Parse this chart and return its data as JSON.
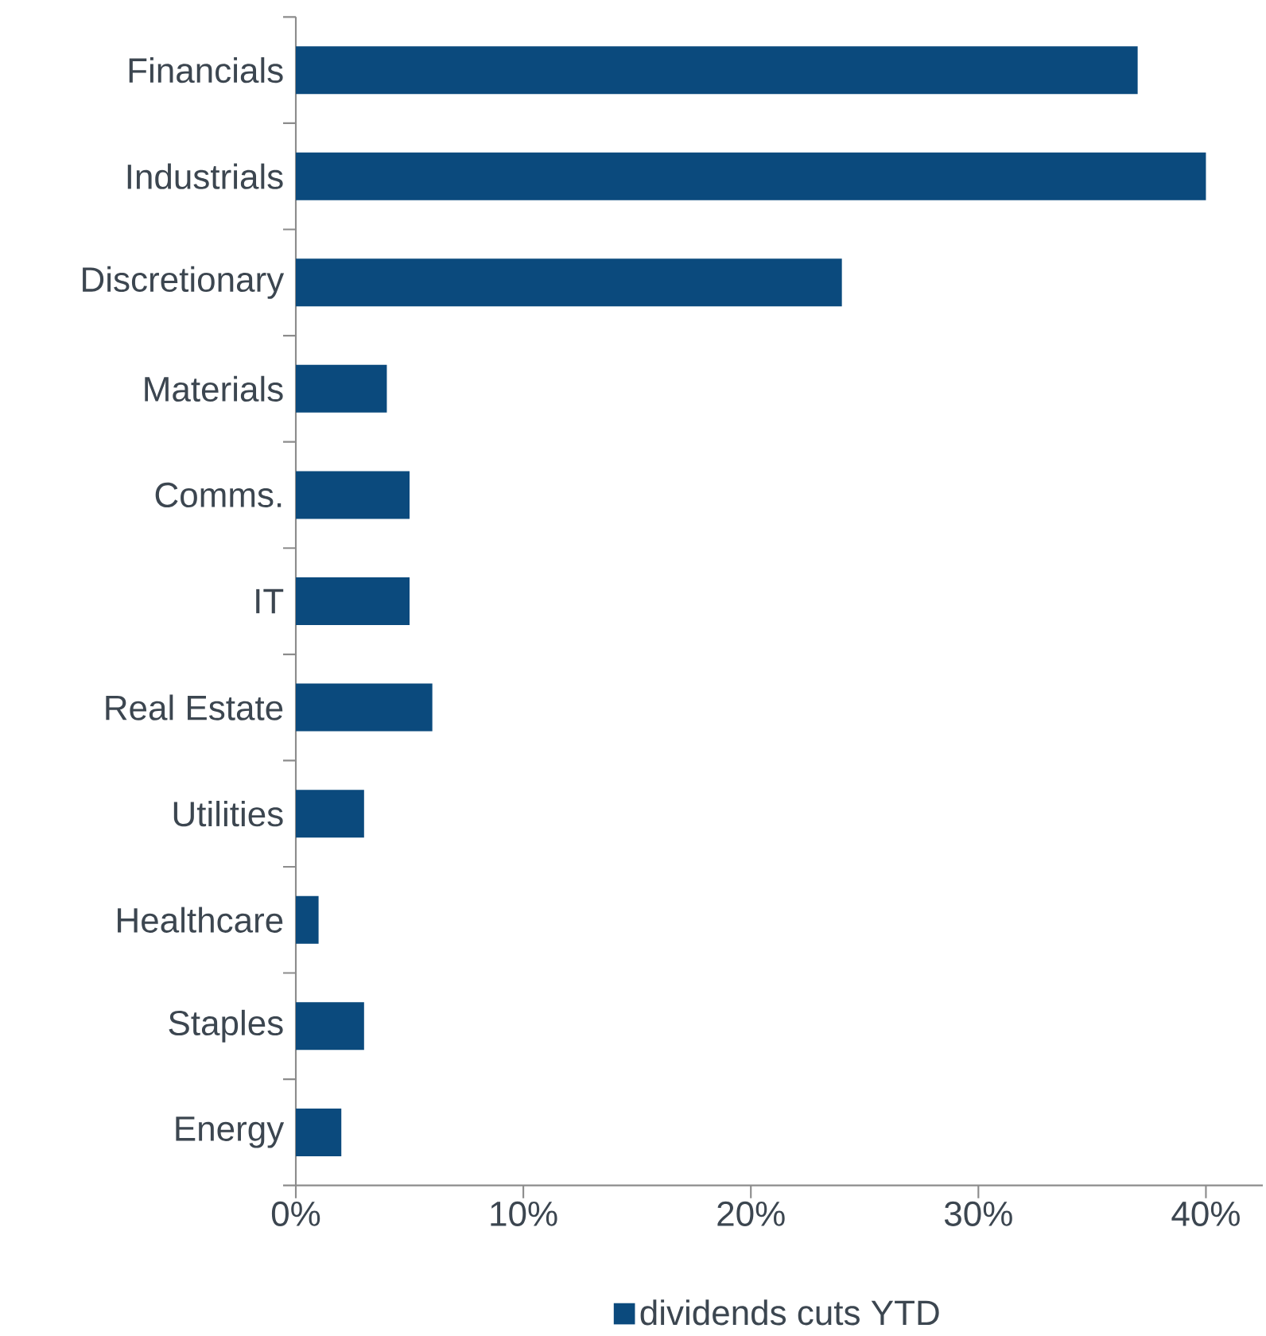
{
  "chart_data": {
    "type": "bar",
    "orientation": "horizontal",
    "categories": [
      "Financials",
      "Industrials",
      "Discretionary",
      "Materials",
      "Comms.",
      "IT",
      "Real Estate",
      "Utilities",
      "Healthcare",
      "Staples",
      "Energy"
    ],
    "series": [
      {
        "name": "dividends cuts YTD",
        "color": "#0b4a7d",
        "values": [
          37,
          40,
          24,
          4,
          5,
          5,
          6,
          3,
          1,
          3,
          2
        ]
      }
    ],
    "xlim": [
      0,
      42.5
    ],
    "xticks": [
      {
        "value": 0,
        "label": "0%"
      },
      {
        "value": 10,
        "label": "10%"
      },
      {
        "value": 20,
        "label": "20%"
      },
      {
        "value": 30,
        "label": "30%"
      },
      {
        "value": 40,
        "label": "40%"
      }
    ],
    "grid": false,
    "legend": "bottom"
  }
}
